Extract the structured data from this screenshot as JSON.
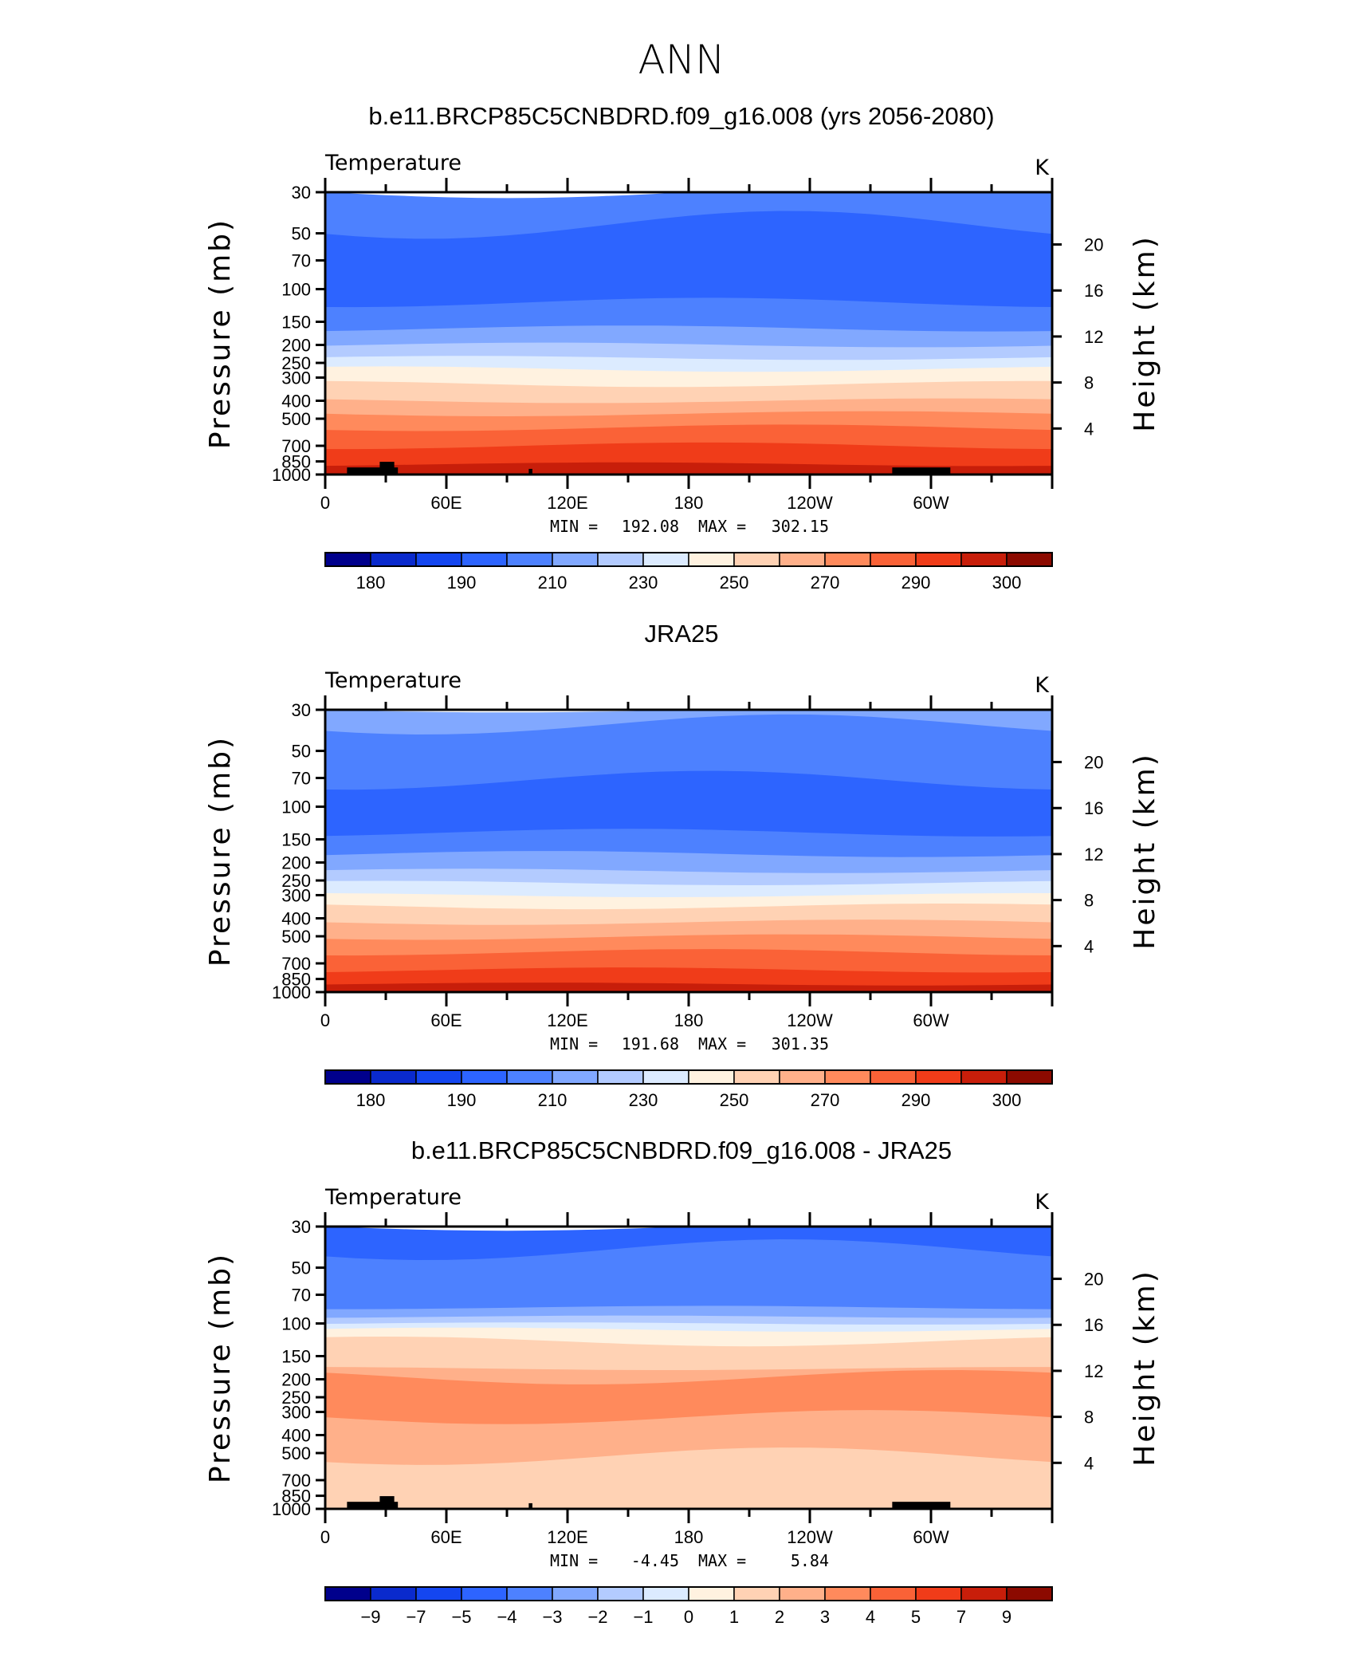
{
  "figure": {
    "title": "ANN"
  },
  "chart_data": [
    {
      "type": "heatmap",
      "title": "b.e11.BRCP85C5CNBDRD.f09_g16.008 (yrs 2056-2080)",
      "variable": "Temperature",
      "units": "K",
      "xlabel": "",
      "ylabel": "Pressure (mb)",
      "y2label": "Height (km)",
      "x_ticks": [
        "0",
        "60E",
        "120E",
        "180",
        "120W",
        "60W"
      ],
      "y_ticks": [
        "30",
        "50",
        "70",
        "100",
        "150",
        "200",
        "250",
        "300",
        "400",
        "500",
        "700",
        "850",
        "1000"
      ],
      "y2_ticks": [
        "20",
        "16",
        "12",
        "8",
        "4"
      ],
      "ylim": [
        1000,
        30
      ],
      "y_scale": "log",
      "stats": {
        "min_label": "MIN",
        "min": "192.08",
        "max_label": "MAX",
        "max": "302.15"
      },
      "colorbar_labels": [
        "180",
        "190",
        "210",
        "230",
        "250",
        "270",
        "290",
        "300"
      ],
      "colorbar_colors": [
        "#00008c",
        "#0a2acd",
        "#1446f0",
        "#2d64ff",
        "#4d81ff",
        "#81a8ff",
        "#b3cbff",
        "#dcebff",
        "#fff2e0",
        "#ffd2b4",
        "#ffb08a",
        "#ff8a5c",
        "#fa6237",
        "#f03c19",
        "#c81e0a",
        "#8c0a00"
      ],
      "bands": [
        {
          "p": 30,
          "c": 4
        },
        {
          "p": 45,
          "c": 3
        },
        {
          "p": 118,
          "c": 4
        },
        {
          "p": 163,
          "c": 5
        },
        {
          "p": 200,
          "c": 6
        },
        {
          "p": 235,
          "c": 7
        },
        {
          "p": 270,
          "c": 8
        },
        {
          "p": 325,
          "c": 9
        },
        {
          "p": 400,
          "c": 10
        },
        {
          "p": 470,
          "c": 11
        },
        {
          "p": 560,
          "c": 12
        },
        {
          "p": 700,
          "c": 13
        },
        {
          "p": 880,
          "c": 14
        }
      ],
      "topography": true
    },
    {
      "type": "heatmap",
      "title": "JRA25",
      "variable": "Temperature",
      "units": "K",
      "xlabel": "",
      "ylabel": "Pressure (mb)",
      "y2label": "Height (km)",
      "x_ticks": [
        "0",
        "60E",
        "120E",
        "180",
        "120W",
        "60W"
      ],
      "y_ticks": [
        "30",
        "50",
        "70",
        "100",
        "150",
        "200",
        "250",
        "300",
        "400",
        "500",
        "700",
        "850",
        "1000"
      ],
      "y2_ticks": [
        "20",
        "16",
        "12",
        "8",
        "4"
      ],
      "ylim": [
        1000,
        30
      ],
      "y_scale": "log",
      "stats": {
        "min_label": "MIN",
        "min": "191.68",
        "max_label": "MAX",
        "max": "301.35"
      },
      "colorbar_labels": [
        "180",
        "190",
        "210",
        "230",
        "250",
        "270",
        "290",
        "300"
      ],
      "colorbar_colors": [
        "#00008c",
        "#0a2acd",
        "#1446f0",
        "#2d64ff",
        "#4d81ff",
        "#81a8ff",
        "#b3cbff",
        "#dcebff",
        "#fff2e0",
        "#ffd2b4",
        "#ffb08a",
        "#ff8a5c",
        "#fa6237",
        "#f03c19",
        "#c81e0a",
        "#8c0a00"
      ],
      "bands": [
        {
          "p": 30,
          "c": 5
        },
        {
          "p": 36,
          "c": 4
        },
        {
          "p": 72,
          "c": 3
        },
        {
          "p": 138,
          "c": 4
        },
        {
          "p": 180,
          "c": 5
        },
        {
          "p": 222,
          "c": 6
        },
        {
          "p": 258,
          "c": 7
        },
        {
          "p": 300,
          "c": 8
        },
        {
          "p": 345,
          "c": 9
        },
        {
          "p": 420,
          "c": 10
        },
        {
          "p": 505,
          "c": 11
        },
        {
          "p": 610,
          "c": 12
        },
        {
          "p": 760,
          "c": 13
        },
        {
          "p": 905,
          "c": 14
        }
      ],
      "topography": false
    },
    {
      "type": "heatmap",
      "title": "b.e11.BRCP85C5CNBDRD.f09_g16.008 - JRA25",
      "variable": "Temperature",
      "units": "K",
      "xlabel": "",
      "ylabel": "Pressure (mb)",
      "y2label": "Height (km)",
      "x_ticks": [
        "0",
        "60E",
        "120E",
        "180",
        "120W",
        "60W"
      ],
      "y_ticks": [
        "30",
        "50",
        "70",
        "100",
        "150",
        "200",
        "250",
        "300",
        "400",
        "500",
        "700",
        "850",
        "1000"
      ],
      "y2_ticks": [
        "20",
        "16",
        "12",
        "8",
        "4"
      ],
      "ylim": [
        1000,
        30
      ],
      "y_scale": "log",
      "stats": {
        "min_label": "MIN",
        "min": "-4.45",
        "max_label": "MAX",
        "max": "5.84"
      },
      "colorbar_labels": [
        "-9",
        "-7",
        "-5",
        "-4",
        "-3",
        "-2",
        "-1",
        "0",
        "1",
        "2",
        "3",
        "4",
        "5",
        "7",
        "9"
      ],
      "colorbar_colors": [
        "#00008c",
        "#0a2acd",
        "#1446f0",
        "#2d64ff",
        "#4d81ff",
        "#81a8ff",
        "#b3cbff",
        "#dcebff",
        "#fff2e0",
        "#ffd2b4",
        "#ffb08a",
        "#ff8a5c",
        "#fa6237",
        "#f03c19",
        "#c81e0a",
        "#8c0a00"
      ],
      "bands": [
        {
          "p": 30,
          "c": 3
        },
        {
          "p": 40,
          "c": 4
        },
        {
          "p": 82,
          "c": 5
        },
        {
          "p": 92,
          "c": 6
        },
        {
          "p": 100,
          "c": 7
        },
        {
          "p": 108,
          "c": 8
        },
        {
          "p": 125,
          "c": 9
        },
        {
          "p": 175,
          "c": 10
        },
        {
          "p": 195,
          "c": 11
        },
        {
          "p": 320,
          "c": 10
        },
        {
          "p": 520,
          "c": 9
        },
        {
          "p": 950,
          "c": 9
        }
      ],
      "topography": true
    }
  ]
}
